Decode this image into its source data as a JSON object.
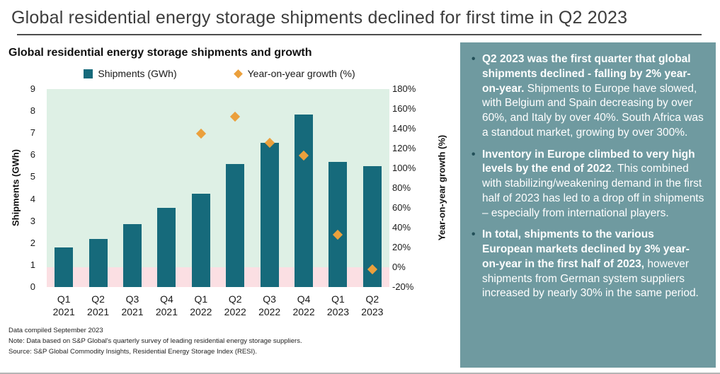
{
  "page_title": "Global residential energy storage shipments declined for first time in Q2 2023",
  "chart_data": {
    "type": "bar",
    "title": "Global residential energy storage shipments and growth",
    "categories": [
      "Q1 2021",
      "Q2 2021",
      "Q3 2021",
      "Q4 2021",
      "Q1 2022",
      "Q2 2022",
      "Q3 2022",
      "Q4 2022",
      "Q1 2023",
      "Q2 2023"
    ],
    "series": [
      {
        "name": "Shipments (GWh)",
        "type": "bar",
        "axis": "left",
        "color": "#166a7b",
        "values": [
          1.8,
          2.2,
          2.85,
          3.6,
          4.25,
          5.6,
          6.55,
          7.85,
          5.7,
          5.5
        ]
      },
      {
        "name": "Year-on-year growth (%)",
        "type": "scatter",
        "marker": "diamond",
        "axis": "right",
        "color": "#eba03c",
        "values": [
          null,
          null,
          null,
          null,
          135,
          152,
          126,
          113,
          33,
          -2
        ]
      }
    ],
    "left_axis": {
      "label": "Shipments (GWh)",
      "min": 0,
      "max": 9,
      "ticks": [
        0,
        1,
        2,
        3,
        4,
        5,
        6,
        7,
        8,
        9
      ]
    },
    "right_axis": {
      "label": "Year-on-year growth (%)",
      "min": -20,
      "max": 180,
      "ticks": [
        -20,
        0,
        20,
        40,
        60,
        80,
        100,
        120,
        140,
        160,
        180
      ],
      "suffix": "%"
    },
    "plot_bands": [
      {
        "axis": "right",
        "from": 0,
        "to": 180,
        "color": "#def0e5"
      },
      {
        "axis": "right",
        "from": -20,
        "to": 0,
        "color": "#fbdfe3"
      }
    ],
    "grid": false,
    "legend_position": "top"
  },
  "footnotes": [
    "Data compiled September 2023",
    "Note: Data based on S&P Global's quarterly survey of leading residential energy storage suppliers.",
    "Source: S&P Global Commodity Insights, Residential Energy Storage Index (RESI)."
  ],
  "sidebar": {
    "background": "#6f9aa0",
    "bullets": [
      {
        "bold": "Q2 2023 was the first quarter that global shipments declined - falling by 2% year-on-year.",
        "rest": " Shipments to Europe have slowed, with Belgium and Spain decreasing by over 60%, and Italy by over 40%. South Africa was a standout market, growing by over 300%."
      },
      {
        "bold": "Inventory in Europe climbed to very high levels by the end of 2022",
        "rest": ". This combined with stabilizing/weakening demand in the first half of 2023 has led to a drop off in shipments – especially from international players."
      },
      {
        "bold": "In total, shipments to the various European markets declined by 3% year-on-year in the first half of 2023,",
        "rest": " however shipments from German system suppliers increased by nearly 30% in the same period."
      }
    ]
  }
}
